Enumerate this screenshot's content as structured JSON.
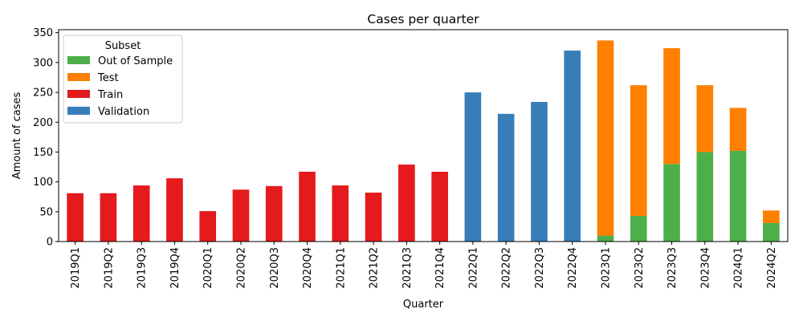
{
  "chart_data": {
    "type": "bar",
    "stacked": true,
    "title": "Cases per quarter",
    "xlabel": "Quarter",
    "ylabel": "Amount of cases",
    "ylim": [
      0,
      355
    ],
    "yticks": [
      0,
      50,
      100,
      150,
      200,
      250,
      300,
      350
    ],
    "grid": false,
    "legend": {
      "title": "Subset",
      "position": "top-left"
    },
    "categories": [
      "2019Q1",
      "2019Q2",
      "2019Q3",
      "2019Q4",
      "2020Q1",
      "2020Q2",
      "2020Q3",
      "2020Q4",
      "2021Q1",
      "2021Q2",
      "2021Q3",
      "2021Q4",
      "2022Q1",
      "2022Q2",
      "2022Q3",
      "2022Q4",
      "2023Q1",
      "2023Q2",
      "2023Q3",
      "2023Q4",
      "2024Q1",
      "2024Q2"
    ],
    "series": [
      {
        "name": "Out of Sample",
        "color": "#4daf4a",
        "values": [
          0,
          0,
          0,
          0,
          0,
          0,
          0,
          0,
          0,
          0,
          0,
          0,
          0,
          0,
          0,
          0,
          10,
          43,
          130,
          150,
          152,
          31
        ]
      },
      {
        "name": "Test",
        "color": "#ff7f00",
        "values": [
          0,
          0,
          0,
          0,
          0,
          0,
          0,
          0,
          0,
          0,
          0,
          0,
          0,
          0,
          0,
          0,
          327,
          219,
          194,
          112,
          72,
          21
        ]
      },
      {
        "name": "Train",
        "color": "#e41a1c",
        "values": [
          81,
          81,
          94,
          106,
          51,
          87,
          93,
          117,
          94,
          82,
          129,
          117,
          0,
          0,
          0,
          0,
          0,
          0,
          0,
          0,
          0,
          0
        ]
      },
      {
        "name": "Validation",
        "color": "#377eb8",
        "values": [
          0,
          0,
          0,
          0,
          0,
          0,
          0,
          0,
          0,
          0,
          0,
          0,
          250,
          214,
          234,
          320,
          0,
          0,
          0,
          0,
          0,
          0
        ]
      }
    ]
  }
}
